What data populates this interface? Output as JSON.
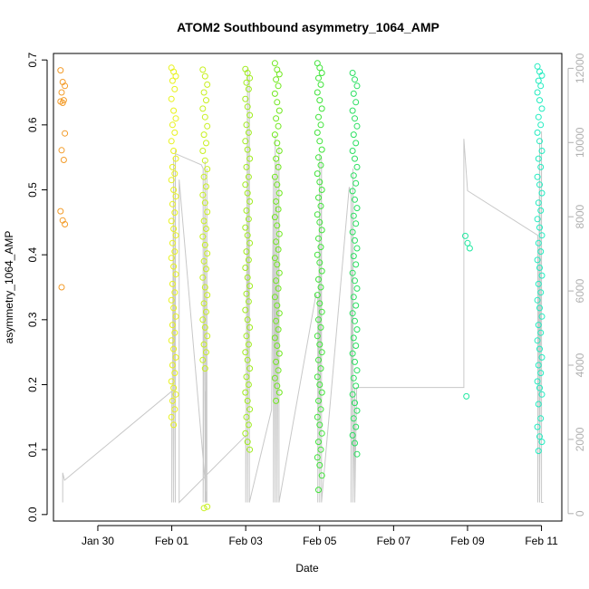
{
  "chart_data": {
    "type": "scatter",
    "title": "ATOM2 Southbound asymmetry_1064_AMP",
    "xlabel": "Date",
    "ylabel": "asymmetry_1064_AMP",
    "x_tick_labels": [
      "Jan 30",
      "Feb 01",
      "Feb 03",
      "Feb 05",
      "Feb 07",
      "Feb 09",
      "Feb 11"
    ],
    "x_tick_values": [
      -2,
      0,
      2,
      4,
      6,
      8,
      10
    ],
    "xlim": [
      -3.2,
      10.55
    ],
    "ylim": [
      -0.01,
      0.71
    ],
    "y_ticks": [
      0.0,
      0.1,
      0.2,
      0.3,
      0.4,
      0.5,
      0.6,
      0.7
    ],
    "y_tick_labels": [
      "0.0",
      "0.1",
      "0.2",
      "0.3",
      "0.4",
      "0.5",
      "0.6",
      "0.7"
    ],
    "y2_ticks": [
      0,
      2000,
      4000,
      6000,
      8000,
      10000,
      12000
    ],
    "y2_tick_labels": [
      "0",
      "2000",
      "4000",
      "6000",
      "8000",
      "10000",
      "12000"
    ],
    "y2lim": [
      -200,
      12400
    ],
    "line_color": "#c8c8c8",
    "right_axis_color": "#b0b0b0",
    "groups": [
      {
        "x": -2.95,
        "y": [
          0.684,
          0.666,
          0.66,
          0.65,
          0.638,
          0.636,
          0.634,
          0.587,
          0.561,
          0.546,
          0.467,
          0.453,
          0.447,
          0.35
        ],
        "color": "#f39c2a"
      },
      {
        "x": 0.05,
        "y": [
          0.688,
          0.682,
          0.675,
          0.668,
          0.655,
          0.64,
          0.622,
          0.61,
          0.6,
          0.588,
          0.575,
          0.56,
          0.548,
          0.535,
          0.525,
          0.515,
          0.5,
          0.49,
          0.478,
          0.465,
          0.452,
          0.44,
          0.43,
          0.418,
          0.405,
          0.395,
          0.382,
          0.37,
          0.355,
          0.342,
          0.33,
          0.318,
          0.305,
          0.292,
          0.28,
          0.268,
          0.255,
          0.242,
          0.23,
          0.218,
          0.205,
          0.195,
          0.185,
          0.175,
          0.162,
          0.15,
          0.138
        ],
        "color": "#e8f21d"
      },
      {
        "x": 0.9,
        "y": [
          0.685,
          0.675,
          0.662,
          0.65,
          0.638,
          0.625,
          0.612,
          0.598,
          0.585,
          0.572,
          0.56,
          0.545,
          0.532,
          0.52,
          0.505,
          0.492,
          0.48,
          0.466,
          0.452,
          0.44,
          0.428,
          0.415,
          0.402,
          0.39,
          0.378,
          0.365,
          0.35,
          0.338,
          0.325,
          0.312,
          0.3,
          0.288,
          0.275,
          0.262,
          0.25,
          0.238,
          0.225,
          0.012,
          0.01
        ],
        "color": "#c8f020"
      },
      {
        "x": 2.05,
        "y": [
          0.686,
          0.68,
          0.672,
          0.665,
          0.655,
          0.64,
          0.628,
          0.615,
          0.6,
          0.588,
          0.575,
          0.562,
          0.548,
          0.535,
          0.52,
          0.508,
          0.495,
          0.482,
          0.468,
          0.455,
          0.442,
          0.43,
          0.418,
          0.405,
          0.392,
          0.38,
          0.365,
          0.352,
          0.34,
          0.328,
          0.315,
          0.3,
          0.288,
          0.275,
          0.262,
          0.25,
          0.238,
          0.225,
          0.212,
          0.2,
          0.188,
          0.175,
          0.162,
          0.15,
          0.138,
          0.125,
          0.112,
          0.1
        ],
        "color": "#a0ec1e"
      },
      {
        "x": 2.85,
        "y": [
          0.695,
          0.685,
          0.678,
          0.67,
          0.66,
          0.648,
          0.635,
          0.622,
          0.61,
          0.598,
          0.585,
          0.572,
          0.56,
          0.548,
          0.535,
          0.52,
          0.508,
          0.495,
          0.482,
          0.47,
          0.458,
          0.445,
          0.432,
          0.42,
          0.408,
          0.395,
          0.385,
          0.372,
          0.36,
          0.348,
          0.335,
          0.322,
          0.31,
          0.298,
          0.285,
          0.272,
          0.26,
          0.248,
          0.235,
          0.222,
          0.21,
          0.198,
          0.188,
          0.175
        ],
        "color": "#70e81e"
      },
      {
        "x": 4.0,
        "y": [
          0.695,
          0.688,
          0.68,
          0.672,
          0.662,
          0.65,
          0.638,
          0.625,
          0.612,
          0.6,
          0.588,
          0.575,
          0.562,
          0.55,
          0.538,
          0.525,
          0.512,
          0.5,
          0.488,
          0.475,
          0.462,
          0.45,
          0.438,
          0.425,
          0.412,
          0.4,
          0.388,
          0.375,
          0.362,
          0.35,
          0.338,
          0.325,
          0.312,
          0.3,
          0.288,
          0.275,
          0.262,
          0.25,
          0.238,
          0.225,
          0.212,
          0.2,
          0.188,
          0.175,
          0.162,
          0.15,
          0.138,
          0.125,
          0.112,
          0.1,
          0.088,
          0.076,
          0.06,
          0.038
        ],
        "color": "#40e43a"
      },
      {
        "x": 4.95,
        "y": [
          0.68,
          0.67,
          0.66,
          0.648,
          0.635,
          0.622,
          0.61,
          0.598,
          0.585,
          0.572,
          0.56,
          0.548,
          0.535,
          0.522,
          0.51,
          0.498,
          0.485,
          0.472,
          0.46,
          0.448,
          0.435,
          0.422,
          0.41,
          0.398,
          0.385,
          0.372,
          0.36,
          0.348,
          0.335,
          0.322,
          0.31,
          0.298,
          0.285,
          0.272,
          0.26,
          0.248,
          0.235,
          0.222,
          0.21,
          0.198,
          0.185,
          0.172,
          0.16,
          0.148,
          0.135,
          0.122,
          0.11,
          0.093
        ],
        "color": "#2ae060"
      },
      {
        "x": 8.0,
        "y": [
          0.429,
          0.418,
          0.41,
          0.182
        ],
        "color": "#20e8a0"
      },
      {
        "x": 9.95,
        "y": [
          0.69,
          0.682,
          0.676,
          0.668,
          0.66,
          0.65,
          0.638,
          0.625,
          0.612,
          0.6,
          0.588,
          0.575,
          0.56,
          0.548,
          0.535,
          0.52,
          0.508,
          0.495,
          0.48,
          0.468,
          0.455,
          0.442,
          0.43,
          0.418,
          0.405,
          0.392,
          0.38,
          0.368,
          0.355,
          0.342,
          0.33,
          0.318,
          0.305,
          0.292,
          0.28,
          0.268,
          0.255,
          0.242,
          0.23,
          0.218,
          0.205,
          0.195,
          0.185,
          0.17,
          0.148,
          0.135,
          0.12,
          0.112,
          0.098
        ],
        "color": "#22ecc0"
      }
    ],
    "line_series": {
      "x": [
        -2.95,
        -2.95,
        -2.95,
        -2.9,
        0.0,
        0.0,
        0.05,
        0.05,
        0.1,
        0.1,
        0.1,
        0.8,
        0.85,
        0.85,
        0.9,
        0.9,
        0.92,
        0.92,
        0.95,
        0.95,
        0.2,
        0.2,
        2.0,
        2.0,
        2.05,
        2.05,
        2.1,
        2.1,
        2.7,
        2.75,
        2.75,
        2.8,
        2.8,
        2.85,
        2.85,
        2.9,
        2.9,
        3.9,
        3.95,
        3.95,
        4.0,
        4.0,
        4.05,
        4.05,
        4.8,
        4.85,
        4.85,
        4.9,
        4.9,
        4.95,
        4.95,
        5.0,
        5.0,
        7.9,
        7.9,
        8.0,
        8.0,
        9.9,
        9.9,
        9.95,
        9.95,
        10.0,
        10.0,
        10.05
      ],
      "y": [
        1000,
        300,
        1100,
        900,
        3300,
        300,
        9600,
        300,
        9800,
        300,
        9700,
        9400,
        9300,
        300,
        9500,
        300,
        3300,
        300,
        9300,
        300,
        9000,
        300,
        2100,
        300,
        12000,
        300,
        11800,
        300,
        2800,
        9100,
        300,
        10200,
        300,
        9500,
        300,
        9900,
        300,
        5900,
        5800,
        300,
        9700,
        300,
        9600,
        300,
        8800,
        8600,
        300,
        9300,
        300,
        3400,
        300,
        3400,
        3400,
        3400,
        10100,
        8700,
        8700,
        7500,
        300,
        10000,
        300,
        10300,
        300,
        300
      ]
    }
  }
}
